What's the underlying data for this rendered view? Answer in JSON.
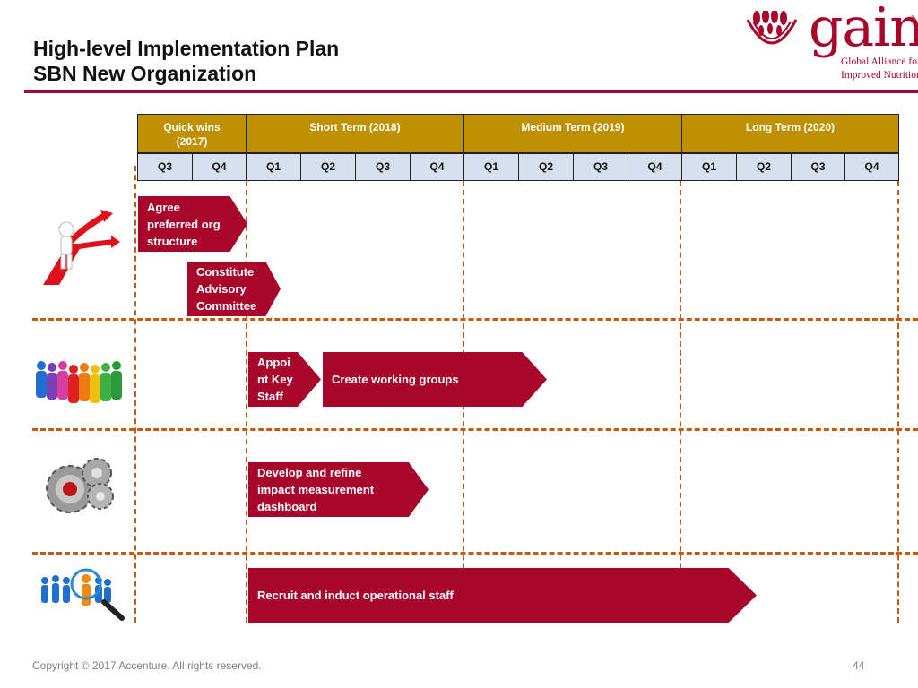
{
  "title": {
    "line1": "High-level Implementation Plan",
    "line2": "SBN New Organization"
  },
  "logo": {
    "word": "gain",
    "reg": "®",
    "sub_line1": "Global Alliance for",
    "sub_line2": "Improved Nutrition"
  },
  "phases": [
    {
      "line1": "Quick wins",
      "line2": "(2017)"
    },
    {
      "line1": "Short Term (2018)",
      "line2": ""
    },
    {
      "line1": "Medium Term (2019)",
      "line2": ""
    },
    {
      "line1": "Long Term (2020)",
      "line2": ""
    }
  ],
  "quarters": [
    "Q3",
    "Q4",
    "Q1",
    "Q2",
    "Q3",
    "Q4",
    "Q1",
    "Q2",
    "Q3",
    "Q4",
    "Q1",
    "Q2",
    "Q3",
    "Q4"
  ],
  "tasks": {
    "agree": {
      "l1": "Agree",
      "l2": "preferred org",
      "l3": "structure"
    },
    "constitute": {
      "l1": "Constitute",
      "l2": "Advisory",
      "l3": "Committee"
    },
    "appoint": {
      "l1": "Appoi",
      "l2": "nt Key",
      "l3": "Staff"
    },
    "working_groups": "Create working groups",
    "dashboard": {
      "l1": "Develop and refine",
      "l2": "impact measurement",
      "l3": "dashboard"
    },
    "recruit": "Recruit and induct operational staff"
  },
  "colors": {
    "accent": "#a8072b",
    "phase_header": "#bf9000",
    "quarter_header": "#d6e0ef",
    "separator": "#c55a11"
  },
  "icons": [
    "strategy-arrows-icon",
    "people-group-icon",
    "gears-icon",
    "recruit-search-icon"
  ],
  "footer": {
    "copyright": "Copyright © 2017 Accenture. All rights reserved.",
    "page": "44"
  }
}
